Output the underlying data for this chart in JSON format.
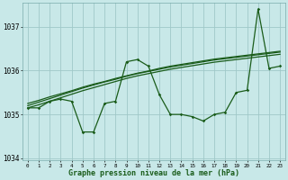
{
  "title": "Graphe pression niveau de la mer (hPa)",
  "bg_color": "#c8e8e8",
  "grid_color": "#a0c8c8",
  "line_color": "#1a5c1a",
  "x_hours": [
    0,
    1,
    2,
    3,
    4,
    5,
    6,
    7,
    8,
    9,
    10,
    11,
    12,
    13,
    14,
    15,
    16,
    17,
    18,
    19,
    20,
    21,
    22,
    23
  ],
  "main_series": [
    1035.15,
    1035.15,
    1035.3,
    1035.35,
    1035.3,
    1034.6,
    1034.6,
    1035.25,
    1035.3,
    1036.2,
    1036.25,
    1036.1,
    1035.45,
    1035.0,
    1035.0,
    1034.95,
    1034.85,
    1035.0,
    1035.05,
    1035.5,
    1035.55,
    1037.4,
    1036.05,
    1036.1
  ],
  "trend1": [
    1035.2,
    1035.28,
    1035.36,
    1035.44,
    1035.52,
    1035.6,
    1035.67,
    1035.74,
    1035.8,
    1035.87,
    1035.93,
    1035.98,
    1036.03,
    1036.08,
    1036.12,
    1036.16,
    1036.2,
    1036.24,
    1036.27,
    1036.3,
    1036.33,
    1036.36,
    1036.39,
    1036.42
  ],
  "trend2": [
    1035.25,
    1035.32,
    1035.4,
    1035.47,
    1035.54,
    1035.62,
    1035.69,
    1035.75,
    1035.82,
    1035.88,
    1035.94,
    1035.99,
    1036.05,
    1036.1,
    1036.14,
    1036.18,
    1036.22,
    1036.26,
    1036.29,
    1036.32,
    1036.35,
    1036.38,
    1036.41,
    1036.44
  ],
  "trend3": [
    1035.15,
    1035.22,
    1035.3,
    1035.38,
    1035.46,
    1035.54,
    1035.61,
    1035.68,
    1035.75,
    1035.82,
    1035.88,
    1035.93,
    1035.98,
    1036.03,
    1036.07,
    1036.11,
    1036.15,
    1036.19,
    1036.22,
    1036.25,
    1036.28,
    1036.31,
    1036.34,
    1036.37
  ],
  "ylim": [
    1033.95,
    1037.55
  ],
  "yticks": [
    1034,
    1035,
    1036,
    1037
  ]
}
